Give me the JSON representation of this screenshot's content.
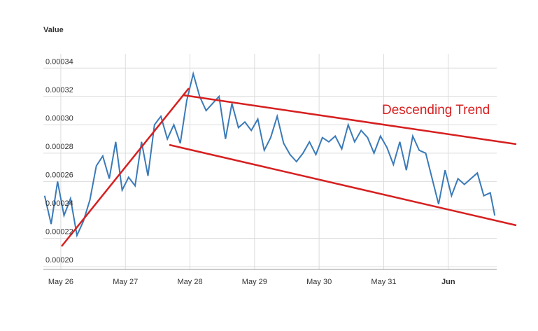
{
  "chart_data": {
    "type": "line",
    "y_label": "Value",
    "annotation": "Descending Trend",
    "x": [
      -0.25,
      -0.15,
      -0.05,
      0.05,
      0.15,
      0.25,
      0.35,
      0.45,
      0.55,
      0.65,
      0.75,
      0.85,
      0.95,
      1.05,
      1.15,
      1.25,
      1.35,
      1.45,
      1.55,
      1.65,
      1.75,
      1.85,
      1.95,
      2.05,
      2.15,
      2.25,
      2.35,
      2.45,
      2.55,
      2.65,
      2.75,
      2.85,
      2.95,
      3.05,
      3.15,
      3.25,
      3.35,
      3.45,
      3.55,
      3.65,
      3.75,
      3.85,
      3.95,
      4.05,
      4.15,
      4.25,
      4.35,
      4.45,
      4.55,
      4.65,
      4.75,
      4.85,
      4.95,
      5.05,
      5.15,
      5.25,
      5.35,
      5.45,
      5.55,
      5.65,
      5.75,
      5.85,
      5.95,
      6.05,
      6.15,
      6.25,
      6.35,
      6.45,
      6.55,
      6.65,
      6.72
    ],
    "values": [
      0.00025,
      0.00023,
      0.00026,
      0.000236,
      0.000248,
      0.000222,
      0.000232,
      0.000247,
      0.000271,
      0.000278,
      0.000262,
      0.000288,
      0.000254,
      0.000263,
      0.000257,
      0.000288,
      0.000264,
      0.0003,
      0.000306,
      0.00029,
      0.0003,
      0.000287,
      0.000317,
      0.000336,
      0.00032,
      0.00031,
      0.000315,
      0.00032,
      0.00029,
      0.000315,
      0.000298,
      0.000302,
      0.000296,
      0.000304,
      0.000282,
      0.000291,
      0.000306,
      0.000287,
      0.000279,
      0.000274,
      0.00028,
      0.000288,
      0.000279,
      0.000291,
      0.000288,
      0.000292,
      0.000283,
      0.0003,
      0.000288,
      0.000296,
      0.000291,
      0.00028,
      0.000292,
      0.000284,
      0.000272,
      0.000288,
      0.000268,
      0.000292,
      0.000282,
      0.00028,
      0.000262,
      0.000244,
      0.000268,
      0.00025,
      0.000262,
      0.000258,
      0.000262,
      0.000266,
      0.00025,
      0.000252,
      0.000236
    ],
    "color": "#3a7ab8",
    "xlim": [
      -0.27,
      6.75
    ],
    "xticks": [
      {
        "value": 0,
        "label": "May 26"
      },
      {
        "value": 1,
        "label": "May 27"
      },
      {
        "value": 2,
        "label": "May 28"
      },
      {
        "value": 3,
        "label": "May 29"
      },
      {
        "value": 4,
        "label": "May 30"
      },
      {
        "value": 5,
        "label": "May 31"
      },
      {
        "value": 6,
        "label": "Jun"
      }
    ],
    "ylim": [
      0.0002,
      0.00035
    ],
    "yticks": [
      {
        "value": 0.0002,
        "label": "0.00020"
      },
      0.00022,
      0.00024,
      0.00026,
      0.00028,
      {
        "value": 0.0003,
        "label": "0.00030"
      },
      0.00032,
      0.00034
    ],
    "grid": true
  }
}
